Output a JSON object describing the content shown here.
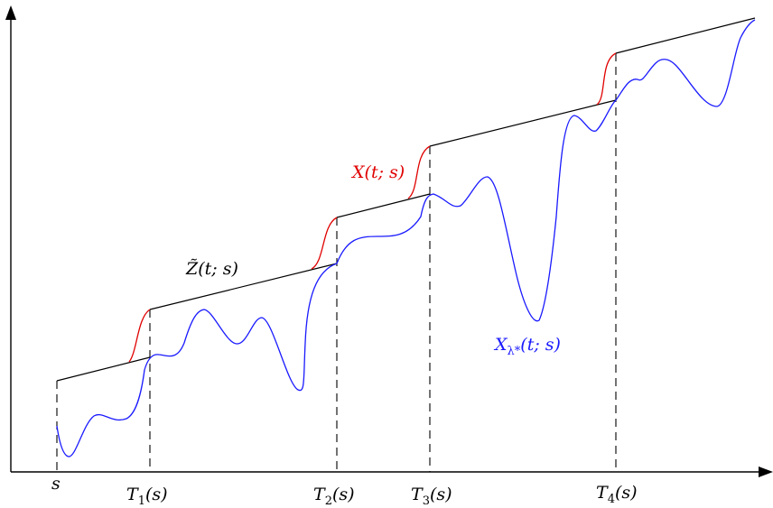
{
  "labels": {
    "s": "s",
    "T1_main": "T",
    "T1_sub": "1",
    "T1_arg": "(s)",
    "T2_main": "T",
    "T2_sub": "2",
    "T2_arg": "(s)",
    "T3_main": "T",
    "T3_sub": "3",
    "T3_arg": "(s)",
    "T4_main": "T",
    "T4_sub": "4",
    "T4_arg": "(s)",
    "X": "X(t; s)",
    "Z": "Z̃(t; s)",
    "Xl_main": "X",
    "Xl_sub": "λ*",
    "Xl_arg": "(t; s)"
  },
  "colors": {
    "X": "#e00000",
    "X_lambda": "#1a1aff",
    "Z": "#000000"
  }
}
